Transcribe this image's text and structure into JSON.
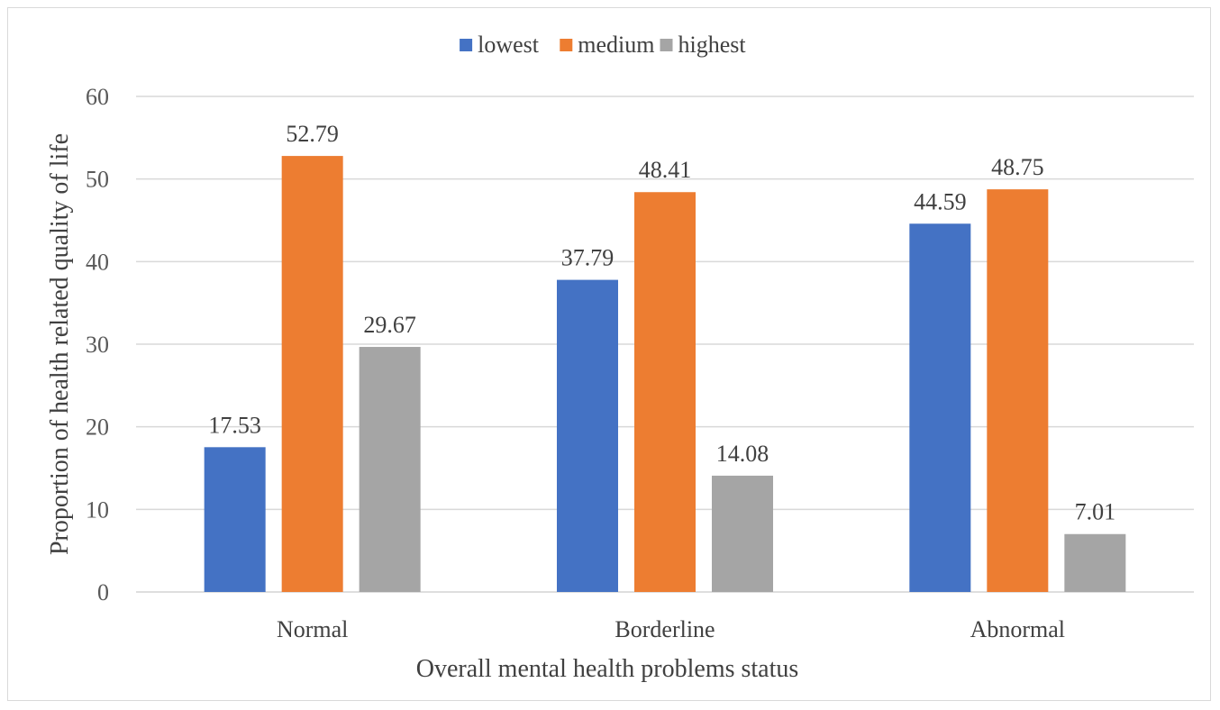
{
  "chart_data": {
    "type": "bar",
    "title": "",
    "xlabel": "Overall mental health problems status",
    "ylabel": "Proportion of health related quality of life",
    "categories": [
      "Normal",
      "Borderline",
      "Abnormal"
    ],
    "series": [
      {
        "name": "lowest",
        "color": "#4472c4",
        "values": [
          17.53,
          37.79,
          44.59
        ],
        "labels": [
          "17.53",
          "37.79",
          "44.59"
        ]
      },
      {
        "name": "medium",
        "color": "#ed7d31",
        "values": [
          52.79,
          48.41,
          48.75
        ],
        "labels": [
          "52.79",
          "48.41",
          "48.75"
        ]
      },
      {
        "name": "highest",
        "color": "#a5a5a5",
        "values": [
          29.67,
          14.08,
          7.01
        ],
        "labels": [
          "29.67",
          "14.08",
          "7.01"
        ]
      }
    ],
    "ylim": [
      0,
      60
    ],
    "yticks": [
      "0",
      "10",
      "20",
      "30",
      "40",
      "50",
      "60"
    ],
    "grid": true,
    "legend_position": "top"
  }
}
